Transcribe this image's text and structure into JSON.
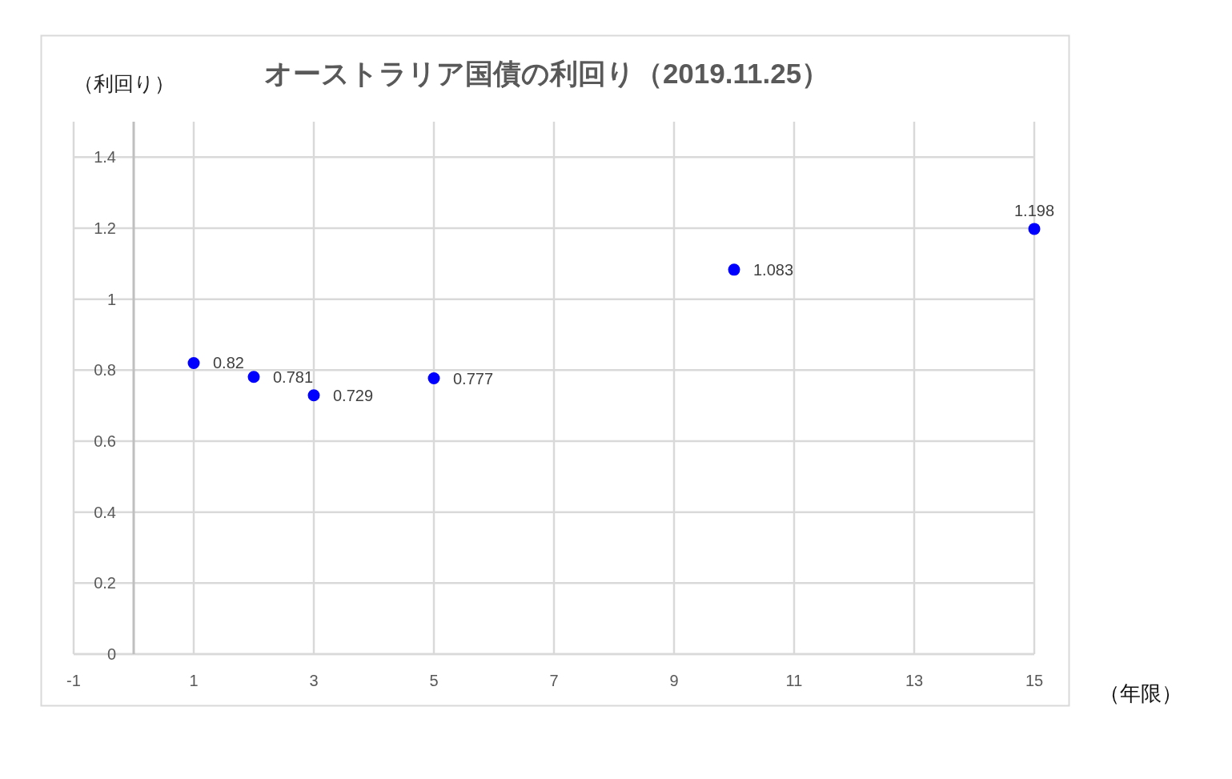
{
  "chart_data": {
    "type": "scatter",
    "title": "オーストラリア国債の利回り（2019.11.25）",
    "xlabel": "（年限）",
    "ylabel": "（利回り）",
    "x": [
      1,
      2,
      3,
      5,
      10,
      15
    ],
    "series": [
      {
        "color": "#0000ff",
        "values": [
          0.82,
          0.781,
          0.729,
          0.777,
          1.083,
          1.198
        ]
      }
    ],
    "xlim": [
      -1,
      15
    ],
    "xticks": [
      -1,
      1,
      3,
      5,
      7,
      9,
      11,
      13,
      15
    ],
    "ylim": [
      0,
      1.5
    ],
    "yticks": [
      0,
      0.2,
      0.4,
      0.6,
      0.8,
      1,
      1.2,
      1.4
    ],
    "grid": true,
    "marker": "circle",
    "data_labels": true
  }
}
